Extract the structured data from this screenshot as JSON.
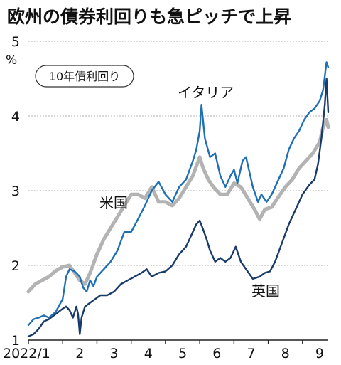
{
  "chart_data": {
    "type": "line",
    "title": "欧州の債券利回りも急ピッチで上昇",
    "badge": "10年債利回り",
    "y_unit": "%",
    "ylim": [
      1,
      5
    ],
    "y_ticks": [
      "1",
      "2",
      "3",
      "4",
      "5"
    ],
    "x_tick_labels": [
      "2022/1",
      "2",
      "3",
      "4",
      "5",
      "6",
      "7",
      "8",
      "9"
    ],
    "xlim": [
      0,
      8.75
    ],
    "grid": "horizontal dotted",
    "series": [
      {
        "name": "イタリア",
        "color": "#1f6fb5",
        "style": "solid",
        "points": [
          [
            0.0,
            1.2
          ],
          [
            0.15,
            1.28
          ],
          [
            0.3,
            1.3
          ],
          [
            0.45,
            1.33
          ],
          [
            0.6,
            1.3
          ],
          [
            0.8,
            1.38
          ],
          [
            1.0,
            1.55
          ],
          [
            1.1,
            1.85
          ],
          [
            1.2,
            1.95
          ],
          [
            1.35,
            1.92
          ],
          [
            1.5,
            1.85
          ],
          [
            1.6,
            1.7
          ],
          [
            1.7,
            1.65
          ],
          [
            1.8,
            1.8
          ],
          [
            1.9,
            1.72
          ],
          [
            2.0,
            1.85
          ],
          [
            2.2,
            1.95
          ],
          [
            2.4,
            2.05
          ],
          [
            2.6,
            2.2
          ],
          [
            2.8,
            2.45
          ],
          [
            3.0,
            2.45
          ],
          [
            3.2,
            2.62
          ],
          [
            3.4,
            2.8
          ],
          [
            3.6,
            3.0
          ],
          [
            3.8,
            3.12
          ],
          [
            4.0,
            2.95
          ],
          [
            4.2,
            2.85
          ],
          [
            4.4,
            3.05
          ],
          [
            4.6,
            3.15
          ],
          [
            4.8,
            3.4
          ],
          [
            4.9,
            3.55
          ],
          [
            5.0,
            3.8
          ],
          [
            5.05,
            4.15
          ],
          [
            5.15,
            3.7
          ],
          [
            5.3,
            3.45
          ],
          [
            5.45,
            3.5
          ],
          [
            5.6,
            3.2
          ],
          [
            5.75,
            3.05
          ],
          [
            5.9,
            3.2
          ],
          [
            6.0,
            3.28
          ],
          [
            6.1,
            3.1
          ],
          [
            6.25,
            3.4
          ],
          [
            6.35,
            3.45
          ],
          [
            6.45,
            3.25
          ],
          [
            6.55,
            3.05
          ],
          [
            6.7,
            2.85
          ],
          [
            6.8,
            2.95
          ],
          [
            6.95,
            2.85
          ],
          [
            7.1,
            2.95
          ],
          [
            7.3,
            3.15
          ],
          [
            7.45,
            3.3
          ],
          [
            7.6,
            3.55
          ],
          [
            7.75,
            3.7
          ],
          [
            7.9,
            3.8
          ],
          [
            8.05,
            3.95
          ],
          [
            8.2,
            4.05
          ],
          [
            8.35,
            4.1
          ],
          [
            8.5,
            4.2
          ],
          [
            8.6,
            4.35
          ],
          [
            8.7,
            4.72
          ],
          [
            8.75,
            4.65
          ]
        ]
      },
      {
        "name": "米国",
        "color": "#b3b3b3",
        "style": "thick",
        "points": [
          [
            0.0,
            1.65
          ],
          [
            0.2,
            1.75
          ],
          [
            0.4,
            1.8
          ],
          [
            0.6,
            1.85
          ],
          [
            0.8,
            1.93
          ],
          [
            1.0,
            1.98
          ],
          [
            1.2,
            2.0
          ],
          [
            1.35,
            1.9
          ],
          [
            1.5,
            1.8
          ],
          [
            1.65,
            1.75
          ],
          [
            1.8,
            1.9
          ],
          [
            2.0,
            2.15
          ],
          [
            2.2,
            2.35
          ],
          [
            2.4,
            2.5
          ],
          [
            2.6,
            2.65
          ],
          [
            2.8,
            2.8
          ],
          [
            3.0,
            2.95
          ],
          [
            3.2,
            2.95
          ],
          [
            3.4,
            2.9
          ],
          [
            3.6,
            3.05
          ],
          [
            3.8,
            2.85
          ],
          [
            4.0,
            2.85
          ],
          [
            4.2,
            2.8
          ],
          [
            4.4,
            2.9
          ],
          [
            4.6,
            3.05
          ],
          [
            4.8,
            3.2
          ],
          [
            5.0,
            3.45
          ],
          [
            5.1,
            3.3
          ],
          [
            5.25,
            3.15
          ],
          [
            5.4,
            3.05
          ],
          [
            5.6,
            2.95
          ],
          [
            5.8,
            2.95
          ],
          [
            6.0,
            3.1
          ],
          [
            6.2,
            3.05
          ],
          [
            6.4,
            2.9
          ],
          [
            6.6,
            2.75
          ],
          [
            6.75,
            2.62
          ],
          [
            6.9,
            2.75
          ],
          [
            7.1,
            2.78
          ],
          [
            7.3,
            2.92
          ],
          [
            7.5,
            3.05
          ],
          [
            7.7,
            3.15
          ],
          [
            7.9,
            3.3
          ],
          [
            8.1,
            3.4
          ],
          [
            8.3,
            3.5
          ],
          [
            8.5,
            3.65
          ],
          [
            8.6,
            3.85
          ],
          [
            8.7,
            3.95
          ],
          [
            8.75,
            3.85
          ]
        ]
      },
      {
        "name": "英国",
        "color": "#1a3a6b",
        "style": "solid",
        "points": [
          [
            0.0,
            1.05
          ],
          [
            0.15,
            1.08
          ],
          [
            0.3,
            1.15
          ],
          [
            0.45,
            1.25
          ],
          [
            0.6,
            1.28
          ],
          [
            0.8,
            1.35
          ],
          [
            1.0,
            1.42
          ],
          [
            1.1,
            1.45
          ],
          [
            1.2,
            1.4
          ],
          [
            1.3,
            1.3
          ],
          [
            1.4,
            1.45
          ],
          [
            1.45,
            1.35
          ],
          [
            1.5,
            1.08
          ],
          [
            1.55,
            1.3
          ],
          [
            1.65,
            1.45
          ],
          [
            1.8,
            1.5
          ],
          [
            1.95,
            1.55
          ],
          [
            2.1,
            1.6
          ],
          [
            2.3,
            1.6
          ],
          [
            2.5,
            1.65
          ],
          [
            2.7,
            1.75
          ],
          [
            2.9,
            1.8
          ],
          [
            3.1,
            1.85
          ],
          [
            3.3,
            1.9
          ],
          [
            3.45,
            1.95
          ],
          [
            3.6,
            1.85
          ],
          [
            3.8,
            1.9
          ],
          [
            4.0,
            1.92
          ],
          [
            4.2,
            2.0
          ],
          [
            4.4,
            2.15
          ],
          [
            4.6,
            2.25
          ],
          [
            4.75,
            2.4
          ],
          [
            4.9,
            2.55
          ],
          [
            5.0,
            2.6
          ],
          [
            5.1,
            2.48
          ],
          [
            5.2,
            2.35
          ],
          [
            5.3,
            2.2
          ],
          [
            5.45,
            2.05
          ],
          [
            5.6,
            2.1
          ],
          [
            5.75,
            2.05
          ],
          [
            5.9,
            2.1
          ],
          [
            6.05,
            2.25
          ],
          [
            6.2,
            2.05
          ],
          [
            6.35,
            1.95
          ],
          [
            6.55,
            1.82
          ],
          [
            6.75,
            1.85
          ],
          [
            6.9,
            1.9
          ],
          [
            7.05,
            1.92
          ],
          [
            7.2,
            2.05
          ],
          [
            7.4,
            2.3
          ],
          [
            7.6,
            2.55
          ],
          [
            7.8,
            2.75
          ],
          [
            8.0,
            2.95
          ],
          [
            8.2,
            3.08
          ],
          [
            8.35,
            3.15
          ],
          [
            8.45,
            3.35
          ],
          [
            8.55,
            3.7
          ],
          [
            8.65,
            4.15
          ],
          [
            8.7,
            4.5
          ],
          [
            8.75,
            4.05
          ]
        ]
      }
    ]
  }
}
